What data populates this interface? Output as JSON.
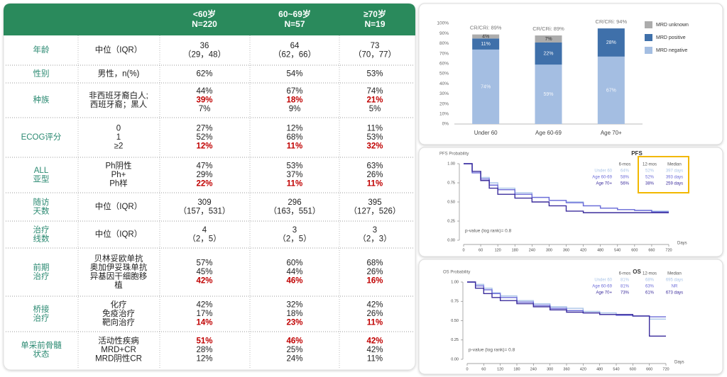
{
  "table": {
    "header": [
      [
        "<60岁",
        "N=220"
      ],
      [
        "60~69岁",
        "N=57"
      ],
      [
        "≥70岁",
        "N=19"
      ]
    ],
    "highlight_color": "#c00000",
    "rows": [
      {
        "label": [
          "年龄"
        ],
        "sub": [
          "中位（IQR）"
        ],
        "cells": [
          [
            "36",
            "（29，48）"
          ],
          [
            "64",
            "（62，66）"
          ],
          [
            "73",
            "（70，77）"
          ]
        ]
      },
      {
        "label": [
          "性别"
        ],
        "sub": [
          "男性，n(%)"
        ],
        "cells": [
          [
            "62%"
          ],
          [
            "54%"
          ],
          [
            "53%"
          ]
        ]
      },
      {
        "label": [
          "种族"
        ],
        "sub": [
          "非西班牙裔白人;",
          "西班牙裔；黑人"
        ],
        "cells": [
          [
            "44%",
            "39%",
            "7%"
          ],
          [
            "67%",
            "18%",
            "9%"
          ],
          [
            "74%",
            "21%",
            "5%"
          ]
        ],
        "highlight_line": 1
      },
      {
        "label": [
          "ECOG评分"
        ],
        "sub": [
          "0",
          "1",
          "≥2"
        ],
        "cells": [
          [
            "27%",
            "52%",
            "12%"
          ],
          [
            "12%",
            "68%",
            "11%"
          ],
          [
            "11%",
            "53%",
            "32%"
          ]
        ],
        "highlight_line": 2
      },
      {
        "label": [
          "ALL",
          "亚型"
        ],
        "sub": [
          "Ph阴性",
          "Ph+",
          "Ph样"
        ],
        "cells": [
          [
            "47%",
            "29%",
            "22%"
          ],
          [
            "53%",
            "37%",
            "11%"
          ],
          [
            "63%",
            "26%",
            "11%"
          ]
        ],
        "highlight_line": 2
      },
      {
        "label": [
          "随访",
          "天数"
        ],
        "sub": [
          "中位（IQR）"
        ],
        "cells": [
          [
            "309",
            "（157，531）"
          ],
          [
            "296",
            "（163，551）"
          ],
          [
            "395",
            "（127，526）"
          ]
        ]
      },
      {
        "label": [
          "治疗",
          "线数"
        ],
        "sub": [
          "中位（IQR）"
        ],
        "cells": [
          [
            "4",
            "（2，5）"
          ],
          [
            "3",
            "（2，5）"
          ],
          [
            "3",
            "（2，3）"
          ]
        ]
      },
      {
        "label": [
          "前期",
          "治疗"
        ],
        "sub": [
          "贝林妥欧单抗",
          "奥加伊妥珠单抗",
          "异基因干细胞移",
          "植"
        ],
        "cells": [
          [
            "57%",
            "45%",
            "42%"
          ],
          [
            "60%",
            "44%",
            "46%"
          ],
          [
            "68%",
            "26%",
            "16%"
          ]
        ],
        "highlight_line": 2
      },
      {
        "label": [
          "桥接",
          "治疗"
        ],
        "sub": [
          "化疗",
          "免疫治疗",
          "靶向治疗"
        ],
        "cells": [
          [
            "42%",
            "17%",
            "14%"
          ],
          [
            "32%",
            "18%",
            "23%"
          ],
          [
            "42%",
            "26%",
            "11%"
          ]
        ],
        "highlight_line": 2
      },
      {
        "label": [
          "单采前骨髓",
          "状态"
        ],
        "sub": [
          "活动性疾病",
          "MRD+CR",
          "MRD阴性CR"
        ],
        "cells": [
          [
            "51%",
            "28%",
            "12%"
          ],
          [
            "46%",
            "25%",
            "24%"
          ],
          [
            "42%",
            "42%",
            "11%"
          ]
        ],
        "highlight_line": 0
      }
    ]
  },
  "chart_data": [
    {
      "type": "bar",
      "stacked": true,
      "legend": "right",
      "categories": [
        "Under 60",
        "Age 60-69",
        "Age 70+"
      ],
      "annotations": [
        "CR/CRi: 89%",
        "CR/CRi: 89%",
        "CR/CRi: 94%"
      ],
      "series": [
        {
          "name": "MRD negative",
          "color": "#a4bee2",
          "values": [
            74,
            59,
            67
          ],
          "value_labels": [
            "74%",
            "59%",
            "67%"
          ]
        },
        {
          "name": "MRD positive",
          "color": "#3f70aa",
          "values": [
            11,
            22,
            28
          ],
          "value_labels": [
            "11%",
            "22%",
            "28%"
          ]
        },
        {
          "name": "MRD unknown",
          "color": "#acacac",
          "values": [
            4,
            7,
            null
          ],
          "value_labels": [
            "4%",
            "7%",
            null
          ]
        }
      ],
      "ylim": [
        0,
        100
      ],
      "yticks": [
        {
          "value": 0,
          "label": "0%"
        },
        {
          "value": 10,
          "label": "10%"
        },
        {
          "value": 20,
          "label": "20%"
        },
        {
          "value": 30,
          "label": "30%"
        },
        {
          "value": 40,
          "label": "40%"
        },
        {
          "value": 50,
          "label": "50%"
        },
        {
          "value": 60,
          "label": "60%"
        },
        {
          "value": 70,
          "label": "70%"
        },
        {
          "value": 80,
          "label": "80%"
        },
        {
          "value": 90,
          "label": "90%"
        },
        {
          "value": 100,
          "label": "100%"
        }
      ]
    },
    {
      "type": "line",
      "step": true,
      "title": "PFS",
      "y_label": "PFS Probability",
      "x_label": "Days",
      "annotation": "p-value (log rank)= 0.8",
      "x": [
        0,
        30,
        60,
        90,
        120,
        180,
        240,
        300,
        360,
        420,
        480,
        540,
        600,
        660,
        720
      ],
      "series": [
        {
          "name": "Under 60",
          "color": "#a9c4e8",
          "values": [
            1.0,
            0.9,
            0.82,
            0.75,
            0.68,
            0.62,
            0.56,
            0.52,
            0.5,
            0.45,
            0.42,
            0.4,
            0.39,
            0.38,
            0.38
          ]
        },
        {
          "name": "Age 60-69",
          "color": "#6b6bd8",
          "values": [
            1.0,
            0.88,
            0.8,
            0.72,
            0.66,
            0.6,
            0.56,
            0.52,
            0.49,
            0.45,
            0.42,
            0.4,
            0.39,
            0.37,
            0.37
          ]
        },
        {
          "name": "Age 70+",
          "color": "#3b2c9c",
          "values": [
            1.0,
            0.9,
            0.78,
            0.68,
            0.6,
            0.55,
            0.5,
            0.45,
            0.38,
            0.36,
            0.36,
            0.36,
            0.36,
            0.36,
            0.36
          ]
        }
      ],
      "summary": {
        "columns": [
          "6-mos",
          "12-mos",
          "Median"
        ],
        "rows": [
          [
            "64%",
            "52%",
            "397 days"
          ],
          [
            "58%",
            "52%",
            "393 days"
          ],
          [
            "56%",
            "38%",
            "259 days"
          ]
        ]
      },
      "highlight_columns": [
        1,
        2
      ],
      "highlight_color": "#f2b800",
      "xlim": [
        0,
        720
      ],
      "xticks": [
        0,
        60,
        120,
        180,
        240,
        300,
        360,
        420,
        480,
        540,
        600,
        660,
        720
      ],
      "ylim": [
        0,
        1
      ],
      "yticks": [
        {
          "value": 0,
          "label": "0.00"
        },
        {
          "value": 0.25,
          "label": "0.25"
        },
        {
          "value": 0.5,
          "label": "0.50"
        },
        {
          "value": 0.75,
          "label": "0.75"
        },
        {
          "value": 1,
          "label": "1.00"
        }
      ]
    },
    {
      "type": "line",
      "step": true,
      "title": "OS",
      "y_label": "OS Probability",
      "x_label": "Days",
      "annotation": "p-value (log rank)= 0.8",
      "x": [
        0,
        30,
        60,
        90,
        120,
        180,
        240,
        300,
        360,
        420,
        480,
        540,
        600,
        660,
        720
      ],
      "series": [
        {
          "name": "Under 60",
          "color": "#a9c4e8",
          "values": [
            1.0,
            0.97,
            0.92,
            0.86,
            0.82,
            0.76,
            0.72,
            0.68,
            0.66,
            0.62,
            0.6,
            0.58,
            0.56,
            0.52,
            0.52
          ]
        },
        {
          "name": "Age 60-69",
          "color": "#6b6bd8",
          "values": [
            1.0,
            0.95,
            0.9,
            0.85,
            0.8,
            0.74,
            0.7,
            0.66,
            0.63,
            0.6,
            0.58,
            0.57,
            0.56,
            0.55,
            0.55
          ]
        },
        {
          "name": "Age 70+",
          "color": "#3b2c9c",
          "values": [
            1.0,
            0.92,
            0.85,
            0.8,
            0.76,
            0.72,
            0.68,
            0.64,
            0.61,
            0.6,
            0.58,
            0.58,
            0.56,
            0.3,
            0.3
          ]
        }
      ],
      "summary": {
        "columns": [
          "6-mos",
          "12-mos",
          "Median"
        ],
        "rows": [
          [
            "81%",
            "68%",
            "695 days"
          ],
          [
            "81%",
            "63%",
            "NR"
          ],
          [
            "73%",
            "61%",
            "673 days"
          ]
        ]
      },
      "xlim": [
        0,
        720
      ],
      "xticks": [
        0,
        60,
        120,
        180,
        240,
        300,
        360,
        420,
        480,
        540,
        600,
        660,
        720
      ],
      "ylim": [
        0,
        1
      ],
      "yticks": [
        {
          "value": 0,
          "label": "0.00"
        },
        {
          "value": 0.25,
          "label": "0.25"
        },
        {
          "value": 0.5,
          "label": "0.50"
        },
        {
          "value": 0.75,
          "label": "0.75"
        },
        {
          "value": 1,
          "label": "1.00"
        }
      ]
    }
  ]
}
